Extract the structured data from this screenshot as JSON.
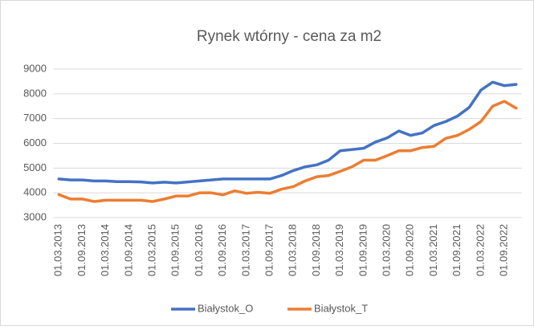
{
  "chart_data": {
    "type": "line",
    "title": "Rynek wtórny - cena za m2",
    "categories": [
      "01.03.2013",
      null,
      "01.09.2013",
      null,
      "01.03.2014",
      null,
      "01.09.2014",
      null,
      "01.03.2015",
      null,
      "01.09.2015",
      null,
      "01.03.2016",
      null,
      "01.09.2016",
      null,
      "01.03.2017",
      null,
      "01.09.2017",
      null,
      "01.03.2018",
      null,
      "01.09.2018",
      null,
      "01.03.2019",
      null,
      "01.09.2019",
      null,
      "01.03.2020",
      null,
      "01.09.2020",
      null,
      "01.03.2021",
      null,
      "01.09.2021",
      null,
      "01.03.2022",
      null,
      "01.09.2022",
      null
    ],
    "series": [
      {
        "name": "Białystok_O",
        "color": "#4472c4",
        "values": [
          4560,
          4520,
          4520,
          4480,
          4480,
          4450,
          4450,
          4440,
          4400,
          4430,
          4400,
          4440,
          4480,
          4520,
          4560,
          4560,
          4560,
          4560,
          4560,
          4700,
          4900,
          5050,
          5130,
          5320,
          5700,
          5750,
          5800,
          6050,
          6220,
          6500,
          6320,
          6420,
          6720,
          6880,
          7100,
          7450,
          8150,
          8470,
          8330,
          8380
        ]
      },
      {
        "name": "Białystok_T",
        "color": "#ed7d31",
        "values": [
          3930,
          3750,
          3750,
          3650,
          3700,
          3700,
          3700,
          3700,
          3650,
          3750,
          3870,
          3870,
          4000,
          4000,
          3920,
          4080,
          3980,
          4020,
          3980,
          4150,
          4250,
          4480,
          4650,
          4700,
          4870,
          5050,
          5320,
          5320,
          5500,
          5700,
          5700,
          5830,
          5880,
          6200,
          6320,
          6560,
          6880,
          7500,
          7700,
          7420
        ]
      }
    ],
    "ylim": [
      3000,
      9000
    ],
    "yticks": [
      3000,
      4000,
      5000,
      6000,
      7000,
      8000,
      9000
    ],
    "grid": true,
    "legend": "bottom"
  }
}
